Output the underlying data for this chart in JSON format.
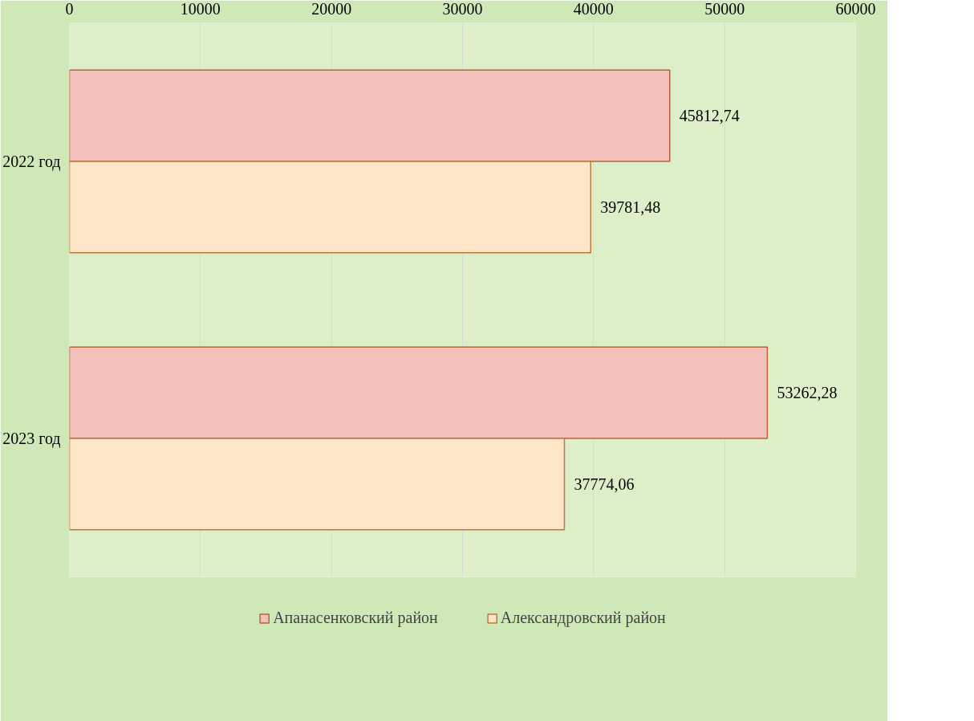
{
  "chart_data": {
    "type": "bar",
    "orientation": "horizontal",
    "categories": [
      "2022 год",
      "2023 год"
    ],
    "series": [
      {
        "name": "Апанасенковский район",
        "color": "#f4c0bb",
        "values": [
          45812.74,
          53262.28
        ],
        "value_labels": [
          "45812,74",
          "53262,28"
        ]
      },
      {
        "name": "Александровский район",
        "color": "#fde5c8",
        "values": [
          39781.48,
          37774.06
        ],
        "value_labels": [
          "39781,48",
          "37774,06"
        ]
      }
    ],
    "xlim": [
      0,
      60000
    ],
    "xticks": [
      0,
      10000,
      20000,
      30000,
      40000,
      50000,
      60000
    ],
    "grid": "x",
    "legend": "bottom"
  }
}
